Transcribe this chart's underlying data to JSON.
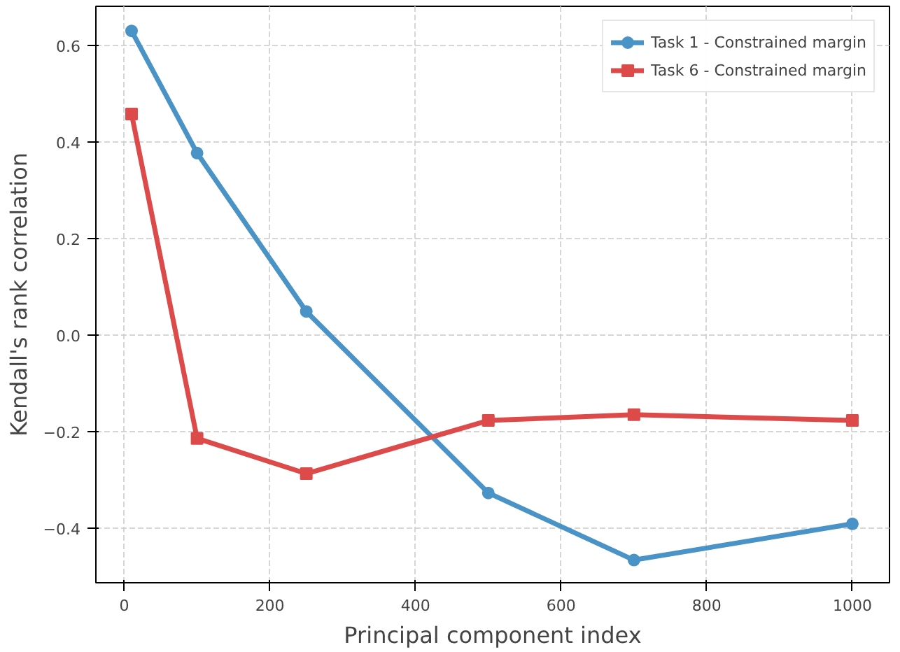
{
  "chart_data": {
    "type": "line",
    "xlabel": "Principal component index",
    "ylabel": "Kendall's rank correlation",
    "x": [
      10,
      100,
      250,
      500,
      700,
      1000
    ],
    "series": [
      {
        "name": "Task 1 - Constrained margin",
        "color": "#4a93c6",
        "marker": "circle",
        "values": [
          0.63,
          0.377,
          0.049,
          -0.327,
          -0.466,
          -0.391
        ]
      },
      {
        "name": "Task 6 - Constrained margin",
        "color": "#dc4a4a",
        "marker": "square",
        "values": [
          0.458,
          -0.214,
          -0.287,
          -0.177,
          -0.165,
          -0.177
        ]
      }
    ],
    "xlim": [
      -39,
      1051
    ],
    "ylim": [
      -0.513,
      0.681
    ],
    "xticks": [
      0,
      200,
      400,
      600,
      800,
      1000
    ],
    "yticks": [
      {
        "value": -0.4,
        "label": "−0.4"
      },
      {
        "value": -0.2,
        "label": "−0.2"
      },
      {
        "value": 0,
        "label": "0.0"
      },
      {
        "value": 0.2,
        "label": "0.2"
      },
      {
        "value": 0.4,
        "label": "0.4"
      },
      {
        "value": 0.6,
        "label": "0.6"
      }
    ],
    "grid": true,
    "legend": "top right",
    "line_style": "solid"
  }
}
